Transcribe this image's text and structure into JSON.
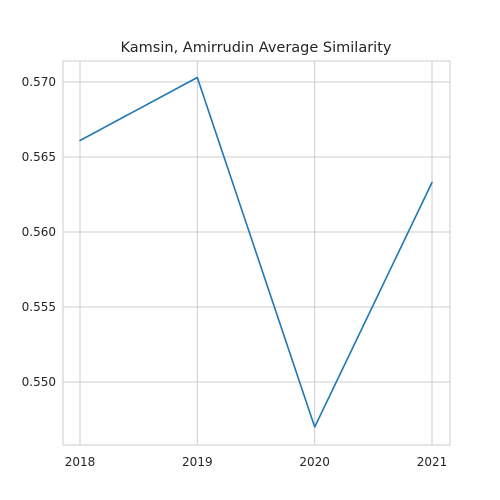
{
  "chart_data": {
    "type": "line",
    "title": "Kamsin, Amirrudin Average Similarity",
    "xlabel": "",
    "ylabel": "",
    "x": [
      "2018",
      "2019",
      "2020",
      "2021"
    ],
    "series": [
      {
        "values": [
          0.5661,
          0.5703,
          0.547,
          0.5633
        ],
        "color": "#1f77b4"
      }
    ],
    "ylim": [
      0.5458,
      0.5714
    ],
    "y_ticks": [
      "0.550",
      "0.555",
      "0.560",
      "0.565",
      "0.570"
    ],
    "grid": true,
    "legend": "none"
  }
}
